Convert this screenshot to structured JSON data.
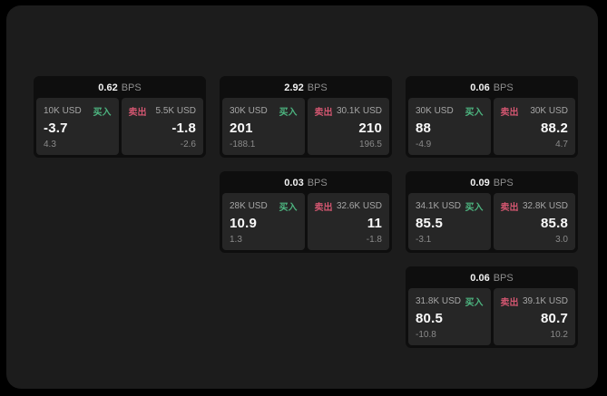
{
  "labels": {
    "buy": "买入",
    "sell": "卖出",
    "bps": "BPS"
  },
  "colors": {
    "buy": "#4db580",
    "sell": "#d25670",
    "panel_background": "#1c1c1c",
    "card_background": "#0e0e0e",
    "subpanel_background": "#262626",
    "page_background": "#000000"
  },
  "cards": [
    {
      "bps": "0.62",
      "buy": {
        "size": "10K USD",
        "value": "-3.7",
        "delta": "4.3"
      },
      "sell": {
        "size": "5.5K USD",
        "value": "-1.8",
        "delta": "-2.6"
      }
    },
    {
      "bps": "2.92",
      "buy": {
        "size": "30K USD",
        "value": "201",
        "delta": "-188.1"
      },
      "sell": {
        "size": "30.1K USD",
        "value": "210",
        "delta": "196.5"
      }
    },
    {
      "bps": "0.06",
      "buy": {
        "size": "30K USD",
        "value": "88",
        "delta": "-4.9"
      },
      "sell": {
        "size": "30K USD",
        "value": "88.2",
        "delta": "4.7"
      }
    },
    {
      "bps": "0.03",
      "buy": {
        "size": "28K USD",
        "value": "10.9",
        "delta": "1.3"
      },
      "sell": {
        "size": "32.6K USD",
        "value": "11",
        "delta": "-1.8"
      }
    },
    {
      "bps": "0.09",
      "buy": {
        "size": "34.1K USD",
        "value": "85.5",
        "delta": "-3.1"
      },
      "sell": {
        "size": "32.8K USD",
        "value": "85.8",
        "delta": "3.0"
      }
    },
    {
      "bps": "0.06",
      "buy": {
        "size": "31.8K USD",
        "value": "80.5",
        "delta": "-10.8"
      },
      "sell": {
        "size": "39.1K USD",
        "value": "80.7",
        "delta": "10.2"
      }
    }
  ]
}
